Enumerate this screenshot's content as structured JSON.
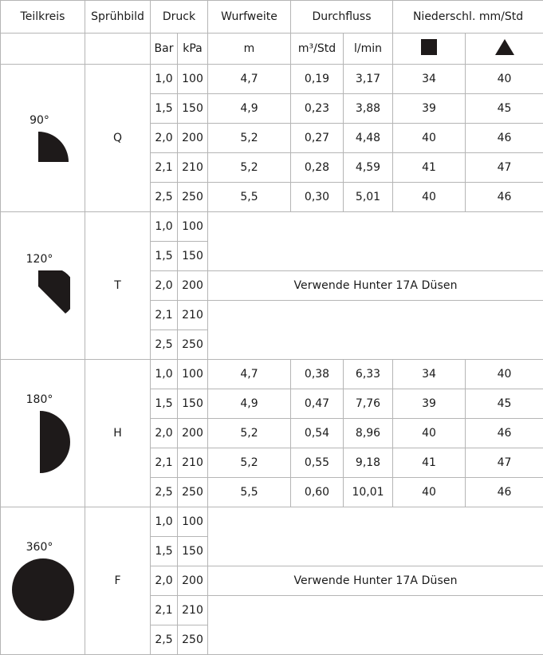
{
  "headers": {
    "teilkreis": "Teilkreis",
    "spruhbild": "Sprühbild",
    "druck": "Druck",
    "wurfweite": "Wurfweite",
    "durchfluss": "Durchfluss",
    "niederschlag": "Niederschl. mm/Std",
    "bar": "Bar",
    "kpa": "kPa",
    "m": "m",
    "m3std": "m³/Std",
    "lmin": "l/min",
    "square_symbol": "square-icon",
    "triangle_symbol": "triangle-icon"
  },
  "colors": {
    "border": "#b5b5b5",
    "shape_fill": "#1e1a1a",
    "text": "#1a1a1a"
  },
  "groups": [
    {
      "teilkreis": "90°",
      "spruhbild": "Q",
      "shape": "quarter-circle-icon",
      "note": "",
      "rows": [
        {
          "bar": "1,0",
          "kpa": "100",
          "m": "4,7",
          "m3": "0,19",
          "lmin": "3,17",
          "sq": "34",
          "tri": "40"
        },
        {
          "bar": "1,5",
          "kpa": "150",
          "m": "4,9",
          "m3": "0,23",
          "lmin": "3,88",
          "sq": "39",
          "tri": "45"
        },
        {
          "bar": "2,0",
          "kpa": "200",
          "m": "5,2",
          "m3": "0,27",
          "lmin": "4,48",
          "sq": "40",
          "tri": "46"
        },
        {
          "bar": "2,1",
          "kpa": "210",
          "m": "5,2",
          "m3": "0,28",
          "lmin": "4,59",
          "sq": "41",
          "tri": "47"
        },
        {
          "bar": "2,5",
          "kpa": "250",
          "m": "5,5",
          "m3": "0,30",
          "lmin": "5,01",
          "sq": "40",
          "tri": "46"
        }
      ]
    },
    {
      "teilkreis": "120°",
      "spruhbild": "T",
      "shape": "third-circle-icon",
      "note": "Verwende Hunter 17A Düsen",
      "rows": [
        {
          "bar": "1,0",
          "kpa": "100"
        },
        {
          "bar": "1,5",
          "kpa": "150"
        },
        {
          "bar": "2,0",
          "kpa": "200"
        },
        {
          "bar": "2,1",
          "kpa": "210"
        },
        {
          "bar": "2,5",
          "kpa": "250"
        }
      ]
    },
    {
      "teilkreis": "180°",
      "spruhbild": "H",
      "shape": "half-circle-icon",
      "note": "",
      "rows": [
        {
          "bar": "1,0",
          "kpa": "100",
          "m": "4,7",
          "m3": "0,38",
          "lmin": "6,33",
          "sq": "34",
          "tri": "40"
        },
        {
          "bar": "1,5",
          "kpa": "150",
          "m": "4,9",
          "m3": "0,47",
          "lmin": "7,76",
          "sq": "39",
          "tri": "45"
        },
        {
          "bar": "2,0",
          "kpa": "200",
          "m": "5,2",
          "m3": "0,54",
          "lmin": "8,96",
          "sq": "40",
          "tri": "46"
        },
        {
          "bar": "2,1",
          "kpa": "210",
          "m": "5,2",
          "m3": "0,55",
          "lmin": "9,18",
          "sq": "41",
          "tri": "47"
        },
        {
          "bar": "2,5",
          "kpa": "250",
          "m": "5,5",
          "m3": "0,60",
          "lmin": "10,01",
          "sq": "40",
          "tri": "46"
        }
      ]
    },
    {
      "teilkreis": "360°",
      "spruhbild": "F",
      "shape": "full-circle-icon",
      "note": "Verwende Hunter 17A Düsen",
      "rows": [
        {
          "bar": "1,0",
          "kpa": "100"
        },
        {
          "bar": "1,5",
          "kpa": "150"
        },
        {
          "bar": "2,0",
          "kpa": "200"
        },
        {
          "bar": "2,1",
          "kpa": "210"
        },
        {
          "bar": "2,5",
          "kpa": "250"
        }
      ]
    }
  ]
}
